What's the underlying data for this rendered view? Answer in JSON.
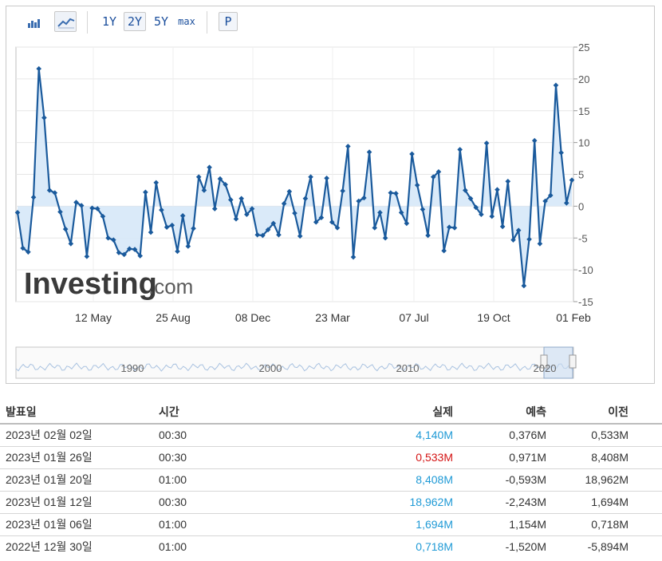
{
  "toolbar": {
    "chart_type_bar": "bar-chart-icon",
    "chart_type_area": "area-chart-icon",
    "ranges": [
      "1Y",
      "2Y",
      "5Y",
      "max"
    ],
    "active_range": "2Y",
    "extra_button": "P"
  },
  "watermark": {
    "brand": "Investing",
    "suffix": ".com"
  },
  "navigator": {
    "years": [
      "1990",
      "2000",
      "2010",
      "2020"
    ]
  },
  "chart_data": {
    "type": "line",
    "title": "",
    "xlabel": "",
    "ylabel": "",
    "ylim": [
      -15,
      25
    ],
    "y_ticks": [
      25,
      20,
      15,
      10,
      5,
      0,
      -5,
      -10,
      -15
    ],
    "x_tick_labels": [
      "12 May",
      "25 Aug",
      "08 Dec",
      "23 Mar",
      "07 Jul",
      "19 Oct",
      "01 Feb"
    ],
    "axis_side": "right",
    "fill_to_zero": true,
    "colors": {
      "line": "#1a5a9c",
      "fill": "#d6e8f8"
    },
    "values": [
      -1.0,
      -6.6,
      -7.2,
      1.4,
      21.6,
      13.9,
      2.5,
      2.1,
      -0.9,
      -3.6,
      -5.9,
      0.6,
      0.1,
      -7.9,
      -0.3,
      -0.4,
      -1.6,
      -5.0,
      -5.3,
      -7.3,
      -7.6,
      -6.7,
      -6.8,
      -7.8,
      2.2,
      -4.1,
      3.7,
      -0.6,
      -3.3,
      -3.0,
      -7.1,
      -1.5,
      -6.3,
      -3.5,
      4.6,
      2.5,
      6.1,
      -0.4,
      4.3,
      3.4,
      1.0,
      -2.0,
      1.2,
      -1.3,
      -0.4,
      -4.5,
      -4.6,
      -3.7,
      -2.7,
      -4.5,
      0.4,
      2.3,
      -1.1,
      -4.7,
      1.2,
      4.6,
      -2.5,
      -1.8,
      4.4,
      -2.5,
      -3.4,
      2.4,
      9.4,
      -8.0,
      0.8,
      1.3,
      8.5,
      -3.4,
      -1.0,
      -5.0,
      2.1,
      2.0,
      -1.0,
      -2.7,
      8.2,
      3.3,
      -0.5,
      -4.6,
      4.6,
      5.4,
      -7.0,
      -3.3,
      -3.4,
      8.9,
      2.5,
      1.2,
      -0.2,
      -1.3,
      9.9,
      -1.6,
      2.6,
      -3.2,
      3.9,
      -5.3,
      -3.8,
      -12.5,
      -5.2,
      10.3,
      -5.9,
      0.8,
      1.7,
      19.0,
      8.4,
      0.5,
      4.1
    ]
  },
  "table": {
    "headers": {
      "date": "발표일",
      "time": "시간",
      "actual": "실제",
      "forecast": "예측",
      "previous": "이전"
    },
    "rows": [
      {
        "date": "2023년 02월 02일",
        "time": "00:30",
        "actual": "4,140M",
        "actual_color": "pos",
        "forecast": "0,376M",
        "previous": "0,533M"
      },
      {
        "date": "2023년 01월 26일",
        "time": "00:30",
        "actual": "0,533M",
        "actual_color": "neg",
        "forecast": "0,971M",
        "previous": "8,408M"
      },
      {
        "date": "2023년 01월 20일",
        "time": "01:00",
        "actual": "8,408M",
        "actual_color": "pos",
        "forecast": "-0,593M",
        "previous": "18,962M"
      },
      {
        "date": "2023년 01월 12일",
        "time": "00:30",
        "actual": "18,962M",
        "actual_color": "pos",
        "forecast": "-2,243M",
        "previous": "1,694M"
      },
      {
        "date": "2023년 01월 06일",
        "time": "01:00",
        "actual": "1,694M",
        "actual_color": "pos",
        "forecast": "1,154M",
        "previous": "0,718M"
      },
      {
        "date": "2022년 12월 30일",
        "time": "01:00",
        "actual": "0,718M",
        "actual_color": "pos",
        "forecast": "-1,520M",
        "previous": "-5,894M"
      }
    ]
  }
}
